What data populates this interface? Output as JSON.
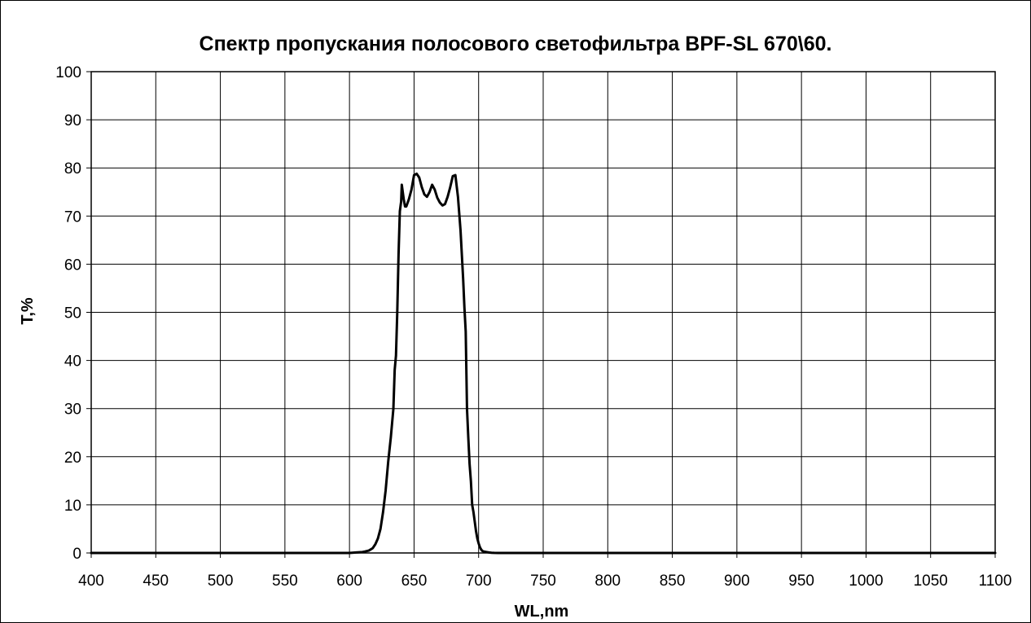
{
  "chart_data": {
    "type": "line",
    "title": "Спектр пропускания полосового светофильтра BPF-SL 670\\60.",
    "xlabel": "WL,nm",
    "ylabel": "T,%",
    "xlim": [
      400,
      1100
    ],
    "ylim": [
      0,
      100
    ],
    "x_ticks": [
      "400",
      "450",
      "500",
      "550",
      "600",
      "650",
      "700",
      "750",
      "800",
      "850",
      "900",
      "950",
      "1000",
      "1050",
      "1100"
    ],
    "y_ticks": [
      "0",
      "10",
      "20",
      "30",
      "40",
      "50",
      "60",
      "70",
      "80",
      "90",
      "100"
    ],
    "grid": true,
    "legend": "none",
    "colors": {
      "line": "#000000",
      "grid": "#000000",
      "background": "#ffffff"
    },
    "series": [
      {
        "x": [
          400,
          600,
          605,
          610,
          612,
          615,
          618,
          620,
          622,
          624,
          626,
          628,
          630,
          632,
          634,
          635,
          636,
          637,
          638,
          639,
          640,
          640.5,
          641,
          642,
          643,
          644,
          646,
          648,
          650,
          652,
          654,
          656,
          658,
          660,
          662,
          664,
          666,
          668,
          670,
          672,
          674,
          676,
          678,
          680,
          682,
          684,
          686,
          688,
          689,
          690,
          690.5,
          691,
          692,
          693,
          694,
          695,
          696,
          697,
          698,
          699,
          700,
          701,
          702,
          703,
          704,
          706,
          708,
          710,
          712,
          715,
          718,
          720,
          725,
          730,
          735,
          740,
          750,
          1100
        ],
        "y": [
          0,
          0,
          0.1,
          0.2,
          0.3,
          0.5,
          1.0,
          1.8,
          3.0,
          5.0,
          8.5,
          13.0,
          19.0,
          24.0,
          30.0,
          38.0,
          41.0,
          50.0,
          62.0,
          71.0,
          73.0,
          76.5,
          75.5,
          73.5,
          72.0,
          72.0,
          73.5,
          75.5,
          78.5,
          78.8,
          78.0,
          76.0,
          74.5,
          74.0,
          75.0,
          76.5,
          75.5,
          73.8,
          72.8,
          72.2,
          72.5,
          74.0,
          76.0,
          78.3,
          78.5,
          74.0,
          67.0,
          57.0,
          51.0,
          46.0,
          38.0,
          30.0,
          24.0,
          18.5,
          15.0,
          10.0,
          8.5,
          6.5,
          4.5,
          3.0,
          2.0,
          1.2,
          0.7,
          0.4,
          0.3,
          0.2,
          0.1,
          0.05,
          0.02,
          0,
          0,
          0,
          0,
          0,
          0,
          0,
          0,
          0
        ]
      }
    ]
  }
}
